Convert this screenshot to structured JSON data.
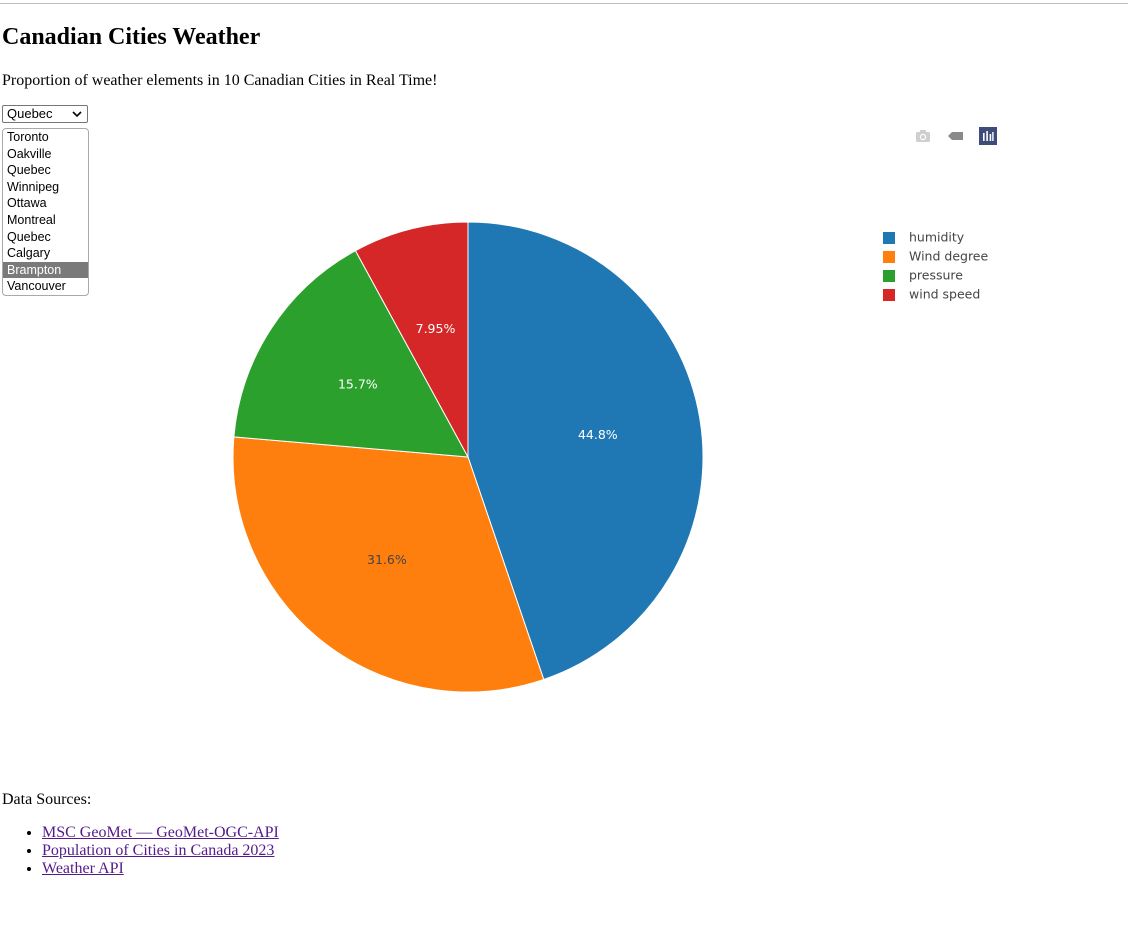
{
  "page": {
    "title": "Canadian Cities Weather",
    "subtitle": "Proportion of weather elements in 10 Canadian Cities in Real Time!"
  },
  "city_select": {
    "selected": "Quebec",
    "options": [
      "Toronto",
      "Oakville",
      "Quebec",
      "Winnipeg",
      "Ottawa",
      "Montreal",
      "Quebec",
      "Calgary",
      "Brampton",
      "Vancouver"
    ],
    "highlighted_index": 8
  },
  "modebar": {
    "icons": [
      "camera-icon",
      "tag-icon",
      "plotly-logo-icon"
    ]
  },
  "chart_data": {
    "type": "pie",
    "labels": [
      "humidity",
      "Wind degree",
      "pressure",
      "wind speed"
    ],
    "values": [
      44.8,
      31.6,
      15.7,
      7.95
    ],
    "value_labels": [
      "44.8%",
      "31.6%",
      "15.7%",
      "7.95%"
    ],
    "colors": [
      "#1f77b4",
      "#ff7f0e",
      "#2ca02c",
      "#d62728"
    ],
    "legend_placement": "top-right"
  },
  "sources": {
    "label": "Data Sources:",
    "links": [
      "MSC GeoMet — GeoMet-OGC-API",
      "Population of Cities in Canada 2023",
      "Weather API"
    ]
  }
}
